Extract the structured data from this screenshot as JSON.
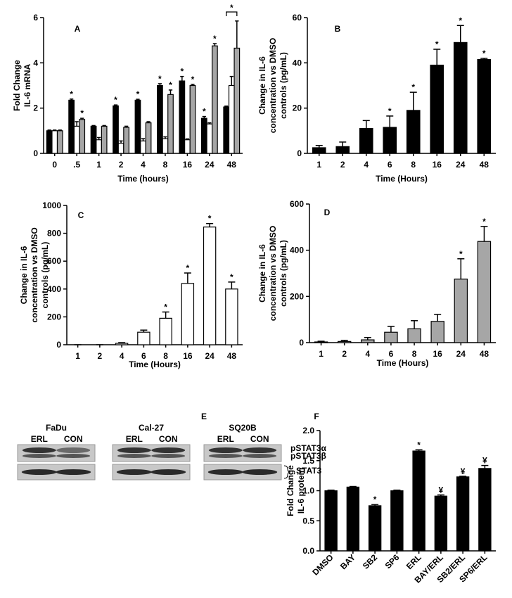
{
  "chart_data": [
    {
      "type": "bar",
      "panel": "A",
      "ylabel": [
        "Fold Change",
        "IL-6 mRNA"
      ],
      "xlabel": "Time (hours)",
      "categories": [
        "0",
        ".5",
        "1",
        "2",
        "4",
        "8",
        "16",
        "24",
        "48"
      ],
      "series": [
        {
          "color": "#000000",
          "values": [
            1,
            2.35,
            1.2,
            2.1,
            2.35,
            3.0,
            3.2,
            1.55,
            2.05
          ],
          "errors": [
            0.03,
            0.05,
            0.03,
            0.04,
            0.04,
            0.08,
            0.2,
            0.08,
            0.04
          ],
          "markers": [
            null,
            "*",
            null,
            "*",
            "*",
            "*",
            "*",
            "*",
            null
          ]
        },
        {
          "color": "#ffffff",
          "values": [
            1,
            1.2,
            0.6,
            0.45,
            0.55,
            0.65,
            0.6,
            1.3,
            3.0
          ],
          "errors": [
            0.03,
            0.2,
            0.1,
            0.1,
            0.1,
            0.08,
            0.04,
            0.05,
            0.4
          ],
          "markers": [
            null,
            null,
            null,
            null,
            null,
            null,
            null,
            null,
            null
          ]
        },
        {
          "color": "#a6a6a6",
          "values": [
            1,
            1.5,
            1.2,
            1.15,
            1.35,
            2.6,
            3.0,
            4.75,
            4.65
          ],
          "errors": [
            0.03,
            0.05,
            0.03,
            0.05,
            0.05,
            0.2,
            0.05,
            0.1,
            1.2
          ],
          "markers": [
            null,
            "*",
            null,
            null,
            null,
            "*",
            "*",
            "*",
            null
          ]
        }
      ],
      "bracket_label": "*",
      "ylim": [
        0,
        6
      ],
      "yticks": [
        0,
        2,
        4,
        6
      ]
    },
    {
      "type": "bar",
      "panel": "B",
      "ylabel": [
        "Change in IL-6",
        "concentration vs DMSO",
        "controls (pg/mL)"
      ],
      "xlabel": "Time (Hours)",
      "categories": [
        "1",
        "2",
        "4",
        "6",
        "8",
        "16",
        "24",
        "48"
      ],
      "series": [
        {
          "color": "#000000",
          "values": [
            2.5,
            3,
            11,
            11.5,
            19,
            39,
            49,
            41.5
          ],
          "errors": [
            1,
            2,
            3.5,
            5,
            8,
            7,
            7.5,
            0.5
          ],
          "markers": [
            null,
            null,
            null,
            "*",
            "*",
            "*",
            "*",
            "*"
          ]
        }
      ],
      "ylim": [
        0,
        60
      ],
      "yticks": [
        0,
        20,
        40,
        60
      ]
    },
    {
      "type": "bar",
      "panel": "C",
      "ylabel": [
        "Change in IL-6",
        "concentration vs DMSO",
        "controls (pg/mL)"
      ],
      "xlabel": "Time (Hours)",
      "categories": [
        "1",
        "2",
        "4",
        "6",
        "8",
        "16",
        "24",
        "48"
      ],
      "series": [
        {
          "color": "#ffffff",
          "values": [
            0,
            0,
            10,
            90,
            190,
            440,
            845,
            400
          ],
          "errors": [
            0,
            0,
            5,
            15,
            45,
            75,
            25,
            50
          ],
          "markers": [
            null,
            null,
            null,
            null,
            "*",
            "*",
            "*",
            "*"
          ]
        }
      ],
      "ylim": [
        0,
        1000
      ],
      "yticks": [
        0,
        200,
        400,
        600,
        800,
        1000
      ]
    },
    {
      "type": "bar",
      "panel": "D",
      "ylabel": [
        "Change in IL-6",
        "concentration vs DMSO",
        "controls (pg/mL)"
      ],
      "xlabel": "Time (Hours)",
      "categories": [
        "1",
        "2",
        "4",
        "6",
        "8",
        "16",
        "24",
        "48"
      ],
      "series": [
        {
          "color": "#a6a6a6",
          "values": [
            3,
            5,
            12,
            45,
            60,
            92,
            275,
            438
          ],
          "errors": [
            3,
            5,
            10,
            25,
            35,
            30,
            88,
            65
          ],
          "markers": [
            null,
            null,
            null,
            null,
            null,
            null,
            "*",
            "*"
          ]
        }
      ],
      "ylim": [
        0,
        600
      ],
      "yticks": [
        0,
        200,
        400,
        600
      ]
    },
    {
      "type": "bar",
      "panel": "F",
      "ylabel": [
        "Fold Change",
        "IL-6 protein"
      ],
      "categories": [
        "DMSO",
        "BAY",
        "SB2",
        "SP6",
        "ERL",
        "BAY/ERL",
        "SB2/ERL",
        "SP6/ERL"
      ],
      "series": [
        {
          "color": "#000000",
          "values": [
            1.0,
            1.06,
            0.75,
            1.0,
            1.66,
            0.91,
            1.23,
            1.37
          ],
          "errors": [
            0.01,
            0.01,
            0.02,
            0.01,
            0.02,
            0.02,
            0.01,
            0.05
          ],
          "markers": [
            null,
            null,
            "*",
            null,
            "*",
            "¥",
            "¥",
            "¥"
          ]
        }
      ],
      "ylim": [
        0,
        2.0
      ],
      "yticks": [
        {
          "value": 0,
          "label": "0.0"
        },
        0.5,
        {
          "value": 1,
          "label": "1.0"
        },
        1.5,
        {
          "value": 2,
          "label": "2.0"
        }
      ]
    }
  ],
  "blot": {
    "panel": "E",
    "groups": [
      {
        "name": "FaDu",
        "lanes": [
          "ERL",
          "CON"
        ]
      },
      {
        "name": "Cal-27",
        "lanes": [
          "ERL",
          "CON"
        ]
      },
      {
        "name": "SQ20B",
        "lanes": [
          "ERL",
          "CON"
        ]
      }
    ],
    "bands": [
      "pSTAT3α",
      "pSTAT3β",
      "STAT3"
    ]
  }
}
